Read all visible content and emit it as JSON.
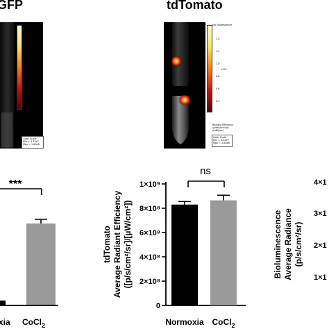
{
  "titles": {
    "left": "GFP",
    "center": "tdTomato"
  },
  "image_panel": {
    "scale_title": "Epi-fluorescence",
    "scale_unit": "×10⁸",
    "legend_line1": "Radiant Efficiency",
    "legend_line2": "(p/sec/cm²/sr)",
    "legend_line3": "/(µW/cm²)",
    "color_scale_lines": [
      "Color Scale",
      "Min = 3.33e7",
      "Max = 1.60e8"
    ],
    "gfp_ticks": [
      "1.0",
      "0.8",
      "0.6",
      "0.4",
      "0.2"
    ],
    "tdt_ticks": [
      "1.4",
      "1.2",
      "1.0",
      "0.8",
      "0.6",
      "0.4"
    ]
  },
  "colors": {
    "normoxia_bar": "#000000",
    "cocl2_bar": "#9a9a9a"
  },
  "chart_data": [
    {
      "type": "bar",
      "panel": "left (GFP)",
      "categories": [
        "Normoxia",
        "CoCl2"
      ],
      "category_labels": [
        "xia",
        "CoCl"
      ],
      "visible_values": [
        null,
        null
      ],
      "significance": "***",
      "note": "chart cropped on left; y-axis labels not visible"
    },
    {
      "type": "bar",
      "panel": "center (tdTomato)",
      "categories": [
        "Normoxia",
        "CoCl2"
      ],
      "category_labels": [
        "Normoxia",
        "CoCl"
      ],
      "values": [
        830000000,
        865000000
      ],
      "errors": [
        25000000,
        42000000
      ],
      "ylim": [
        0,
        1000000000
      ],
      "yticks": [
        "0",
        "2×10⁸",
        "4×10⁸",
        "6×10⁸",
        "8×10⁸",
        "1×10⁹"
      ],
      "ylabel_lines": [
        "tdTomato",
        "Average Radiant Efficiency",
        "([p/s/cm²/sr]/[µW/cm²])"
      ],
      "significance": "ns"
    },
    {
      "type": "bar",
      "panel": "right (Bioluminescence)",
      "ylabel_lines": [
        "Bioluminescence",
        "Average Radiance",
        "(p/s/cm²/sr)"
      ],
      "ytick_labels_partial": [
        "4×1",
        "3×1",
        "2×1",
        "1×1"
      ],
      "note": "chart cropped on right"
    }
  ]
}
